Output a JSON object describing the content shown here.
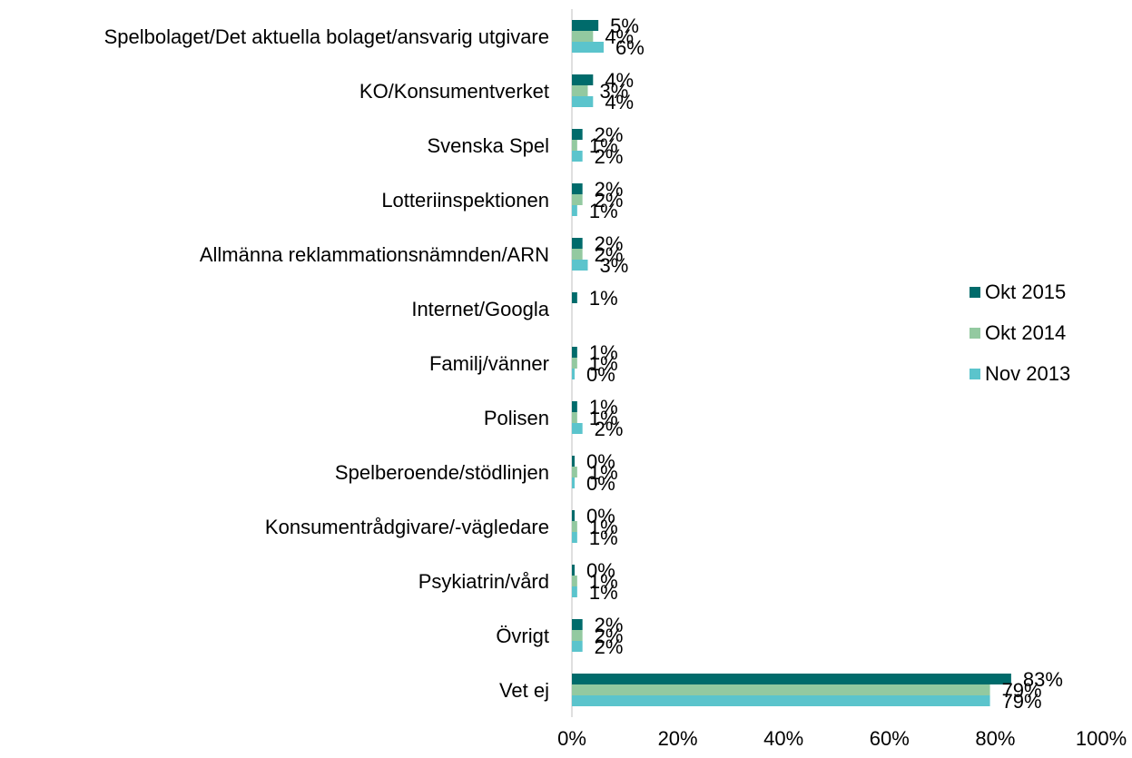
{
  "chart_data": {
    "type": "bar",
    "orientation": "horizontal",
    "categories": [
      "Spelbolaget/Det aktuella bolaget/ansvarig utgivare",
      "KO/Konsumentverket",
      "Svenska Spel",
      "Lotteriinspektionen",
      "Allmänna reklammationsnämnden/ARN",
      "Internet/Googla",
      "Familj/vänner",
      "Polisen",
      "Spelberoende/stödlinjen",
      "Konsumentrådgivare/-vägledare",
      "Psykiatrin/vård",
      "Övrigt",
      "Vet ej"
    ],
    "series": [
      {
        "name": "Okt 2015",
        "color": "#006b6b",
        "values": [
          5,
          4,
          2,
          2,
          2,
          1,
          1,
          1,
          0,
          0,
          0,
          2,
          83
        ],
        "value_labels": [
          "5%",
          "4%",
          "2%",
          "2%",
          "2%",
          "1%",
          "1%",
          "1%",
          "0%",
          "0%",
          "0%",
          "2%",
          "83%"
        ]
      },
      {
        "name": "Okt 2014",
        "color": "#93c9a0",
        "values": [
          4,
          3,
          1,
          2,
          2,
          null,
          1,
          1,
          1,
          1,
          1,
          2,
          79
        ],
        "value_labels": [
          "4%",
          "3%",
          "1%",
          "2%",
          "2%",
          null,
          "1%",
          "1%",
          "1%",
          "1%",
          "1%",
          "2%",
          "79%"
        ]
      },
      {
        "name": "Nov 2013",
        "color": "#5bc4cc",
        "values": [
          6,
          4,
          2,
          1,
          3,
          null,
          0,
          2,
          0,
          1,
          1,
          2,
          79
        ],
        "value_labels": [
          "6%",
          "4%",
          "2%",
          "1%",
          "3%",
          null,
          "0%",
          "2%",
          "0%",
          "1%",
          "1%",
          "2%",
          "79%"
        ]
      }
    ],
    "xlim": [
      0,
      100
    ],
    "xticks": [
      {
        "value": 0,
        "label": "0%"
      },
      {
        "value": 20,
        "label": "20%"
      },
      {
        "value": 40,
        "label": "40%"
      },
      {
        "value": 60,
        "label": "60%"
      },
      {
        "value": 80,
        "label": "80%"
      },
      {
        "value": 100,
        "label": "100%"
      }
    ],
    "legend": "right"
  }
}
